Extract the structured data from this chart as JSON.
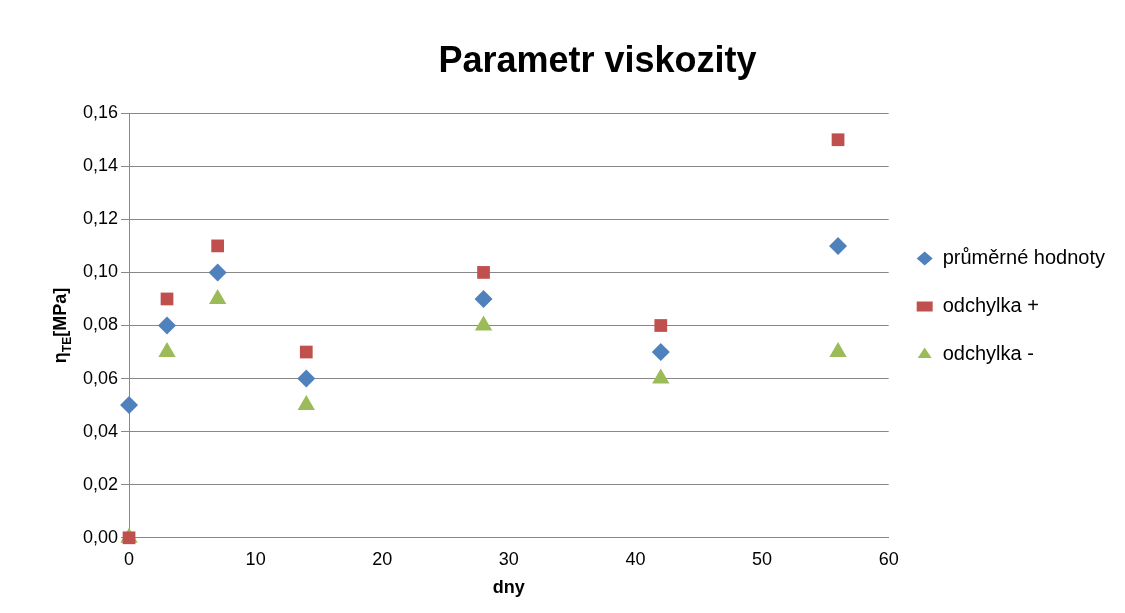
{
  "chart_data": {
    "type": "scatter",
    "title": "Parametr viskozity",
    "xlabel": "dny",
    "ylabel": "η$_{TE}$[MPa]",
    "series": [
      {
        "name": "průměrné hodnoty",
        "color": "#4f81bd",
        "marker": "diamond",
        "x": [
          0,
          3,
          7,
          14,
          28,
          42,
          56
        ],
        "values": [
          0.05,
          0.08,
          0.1,
          0.06,
          0.09,
          0.07,
          0.11
        ]
      },
      {
        "name": "odchylka +",
        "color": "#c0504d",
        "marker": "square",
        "x": [
          0,
          3,
          7,
          14,
          28,
          42,
          56
        ],
        "values": [
          0.0,
          0.09,
          0.11,
          0.07,
          0.1,
          0.08,
          0.15
        ]
      },
      {
        "name": "odchylka -",
        "color": "#9bbb59",
        "marker": "triangle",
        "x": [
          0,
          3,
          7,
          14,
          28,
          42,
          56
        ],
        "values": [
          0.0,
          0.07,
          0.09,
          0.05,
          0.08,
          0.06,
          0.07
        ]
      }
    ],
    "xlim": [
      0,
      60
    ],
    "xticks": [
      0,
      10,
      20,
      30,
      40,
      50,
      60
    ],
    "ylim": [
      0,
      0.16
    ],
    "yticks": [
      {
        "value": 0,
        "label": "0,00"
      },
      {
        "value": 0.02,
        "label": "0,02"
      },
      {
        "value": 0.04,
        "label": "0,04"
      },
      {
        "value": 0.06,
        "label": "0,06"
      },
      {
        "value": 0.08,
        "label": "0,08"
      },
      {
        "value": 0.1,
        "label": "0,10"
      },
      {
        "value": 0.12,
        "label": "0,12"
      },
      {
        "value": 0.14,
        "label": "0,14"
      },
      {
        "value": 0.16,
        "label": "0,16"
      }
    ],
    "grid": "y",
    "legend": "right"
  }
}
